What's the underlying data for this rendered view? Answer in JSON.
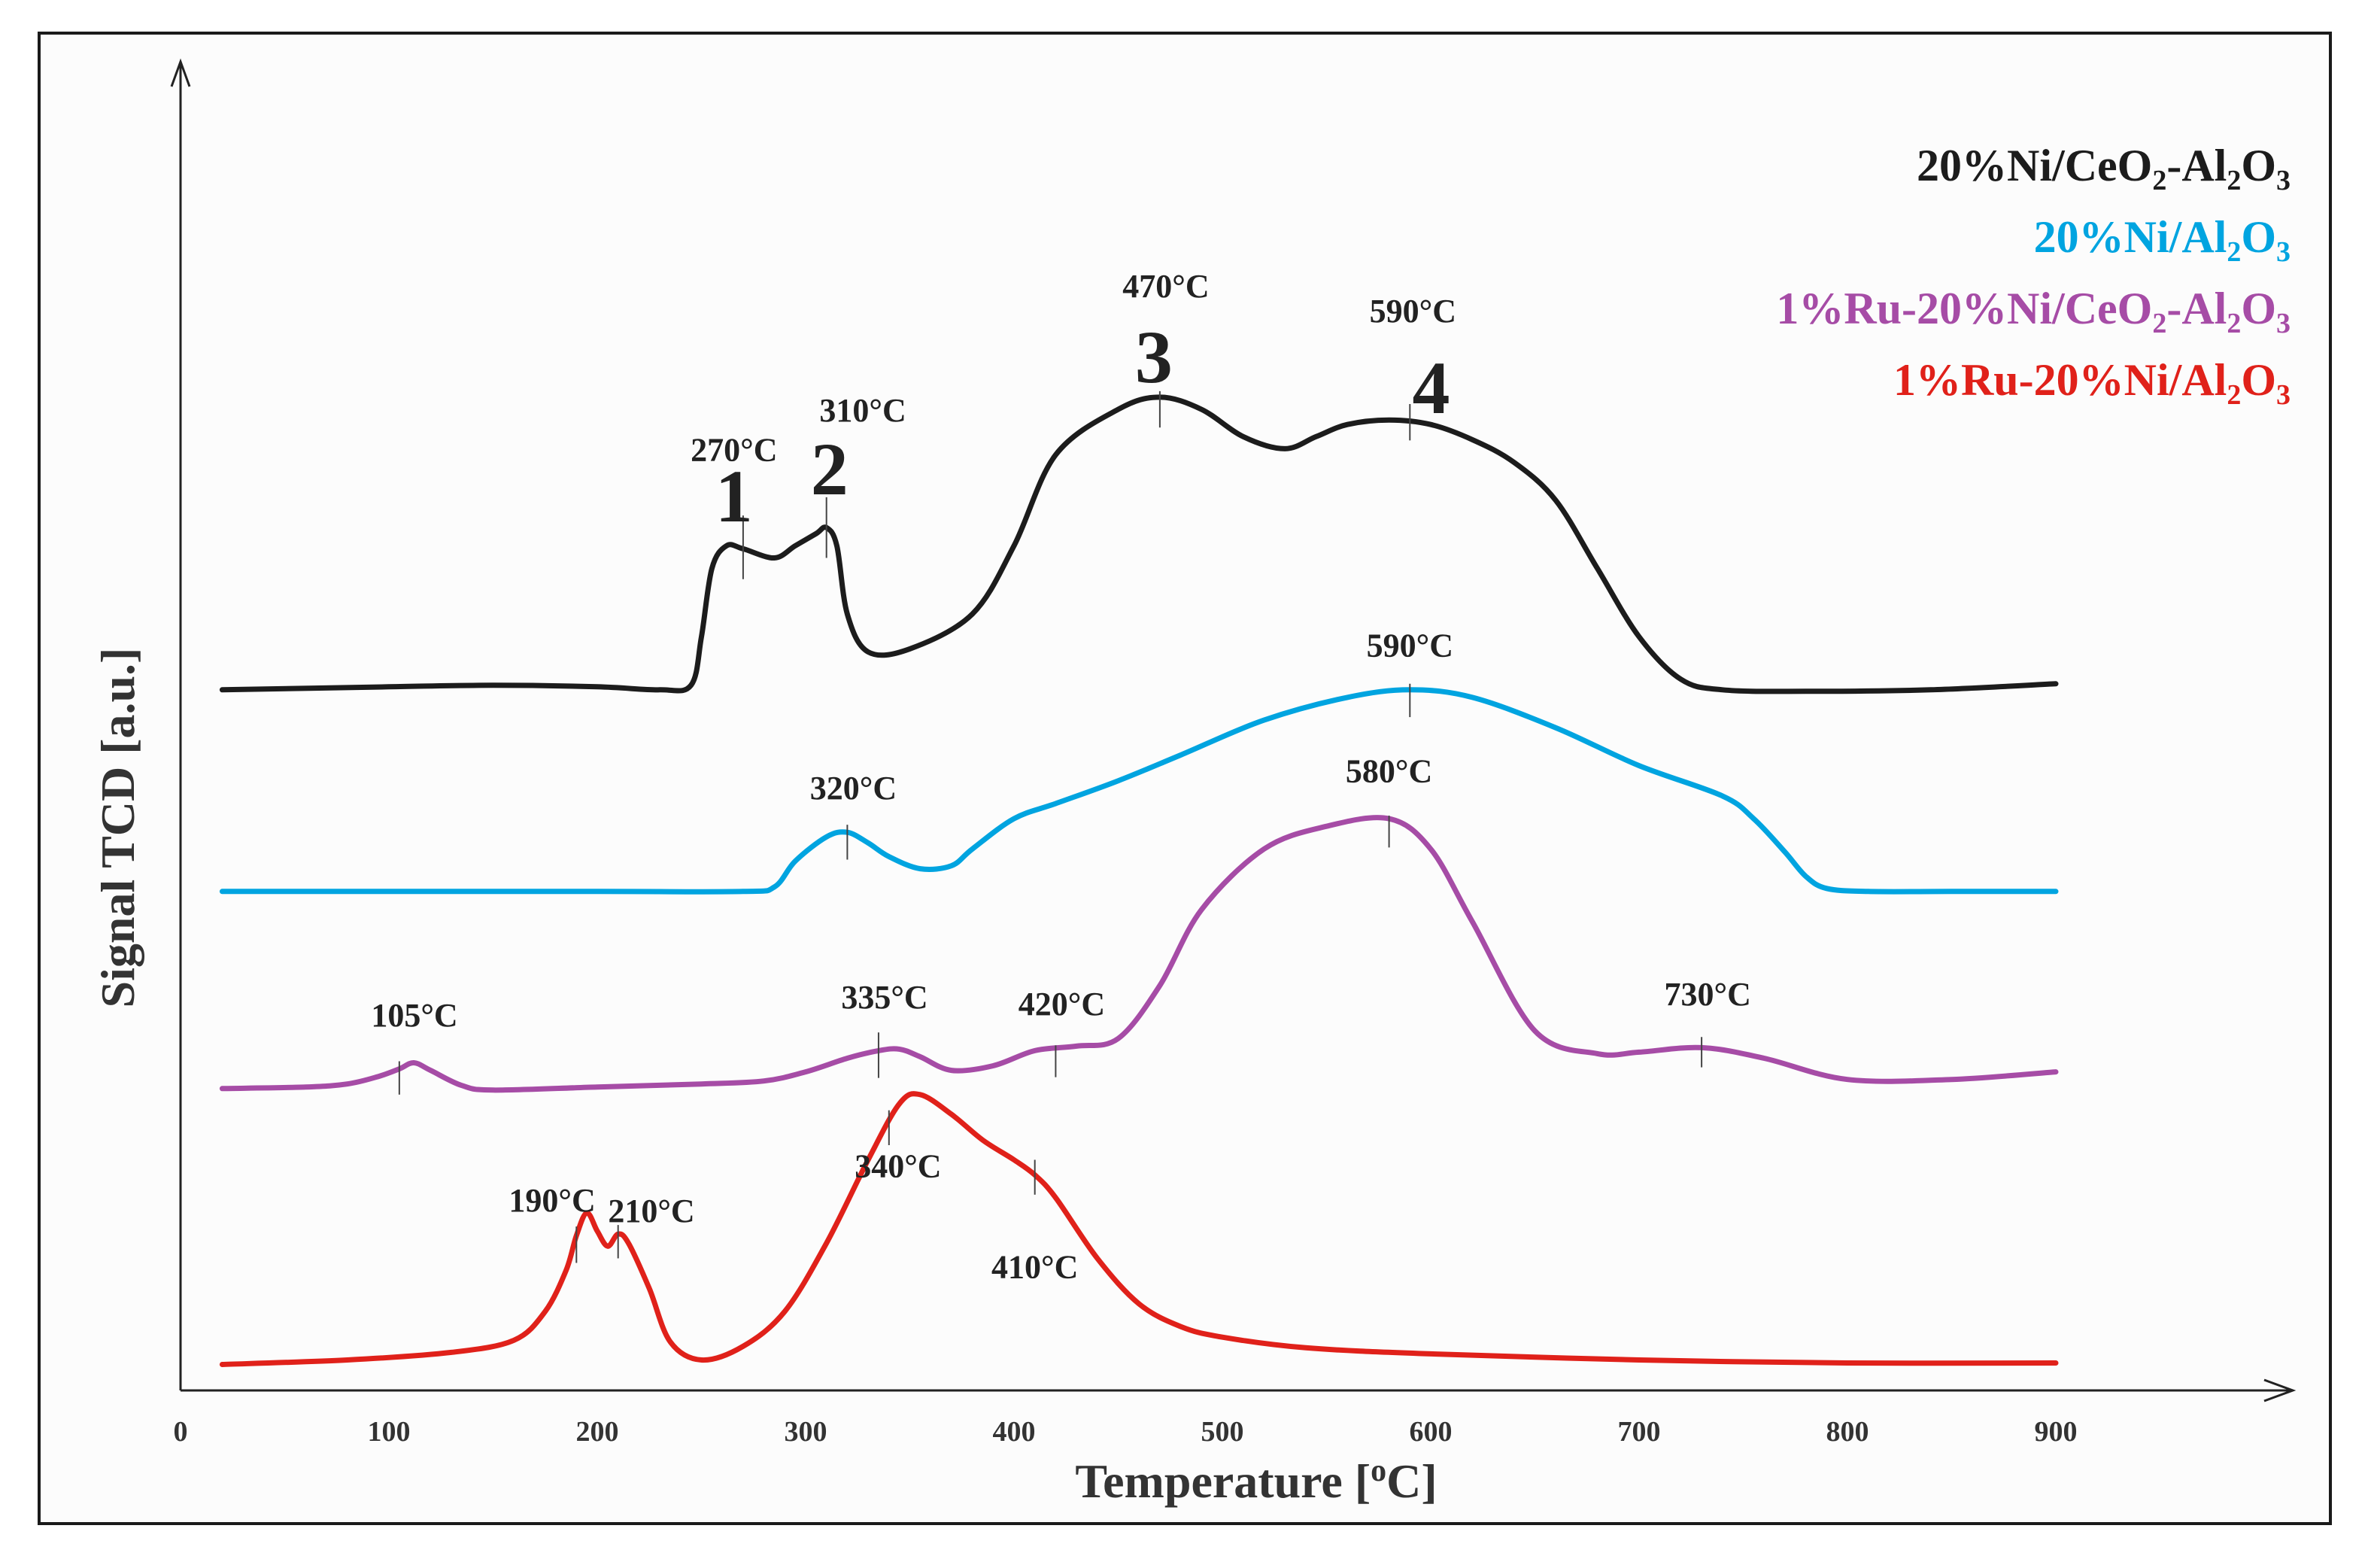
{
  "chart_data": {
    "type": "line",
    "title": "",
    "xlabel": "Temperature [°C]",
    "xlabel_parts": [
      "Temperature [",
      "o",
      "C]"
    ],
    "ylabel": "Signal TCD [a.u.]",
    "xlim": [
      0,
      1000
    ],
    "xticks": [
      0,
      100,
      200,
      300,
      400,
      500,
      600,
      700,
      800,
      900
    ],
    "y_units": "arbitrary (curves vertically offset)",
    "grid": false,
    "legend_position": "top-right",
    "series": [
      {
        "name": "20%Ni/CeO2-Al2O3",
        "legend_parts": [
          [
            "20%Ni/CeO",
            false
          ],
          [
            "2",
            true
          ],
          [
            "-Al",
            false
          ],
          [
            "2",
            true
          ],
          [
            "O",
            false
          ],
          [
            "3",
            true
          ]
        ],
        "color": "#1c1c1c",
        "x": [
          20,
          100,
          150,
          200,
          230,
          245,
          250,
          255,
          262,
          270,
          285,
          295,
          305,
          310,
          315,
          320,
          330,
          350,
          380,
          400,
          420,
          450,
          470,
          490,
          510,
          530,
          545,
          560,
          580,
          600,
          620,
          640,
          660,
          680,
          700,
          720,
          740,
          780,
          840,
          900
        ],
        "y": [
          455,
          453,
          452,
          453,
          455,
          452,
          420,
          375,
          360,
          362,
          368,
          360,
          352,
          348,
          360,
          405,
          430,
          428,
          405,
          360,
          300,
          270,
          262,
          270,
          288,
          296,
          288,
          280,
          277,
          280,
          290,
          305,
          330,
          375,
          420,
          448,
          455,
          456,
          455,
          451
        ],
        "peaks": [
          {
            "x": 270,
            "label": "270°C",
            "number": "1"
          },
          {
            "x": 310,
            "label": "310°C",
            "number": "2"
          },
          {
            "x": 470,
            "label": "470°C",
            "number": "3"
          },
          {
            "x": 590,
            "label": "590°C",
            "number": "4"
          }
        ]
      },
      {
        "name": "20%Ni/Al2O3",
        "legend_parts": [
          [
            "20%Ni/Al",
            false
          ],
          [
            "2",
            true
          ],
          [
            "O",
            false
          ],
          [
            "3",
            true
          ]
        ],
        "color": "#00a4e0",
        "x": [
          20,
          100,
          200,
          270,
          285,
          295,
          310,
          320,
          330,
          340,
          355,
          370,
          380,
          400,
          420,
          450,
          480,
          520,
          560,
          590,
          620,
          660,
          700,
          740,
          755,
          770,
          780,
          790,
          810,
          850,
          900
        ],
        "y": [
          588,
          588,
          588,
          588,
          585,
          568,
          552,
          549,
          556,
          565,
          573,
          571,
          560,
          540,
          530,
          515,
          498,
          475,
          460,
          455,
          460,
          480,
          505,
          525,
          540,
          562,
          578,
          586,
          588,
          588,
          588
        ],
        "peaks": [
          {
            "x": 320,
            "label": "320°C"
          },
          {
            "x": 590,
            "label": "590°C"
          }
        ]
      },
      {
        "name": "1%Ru-20%Ni/CeO2-Al2O3",
        "legend_parts": [
          [
            "1%Ru-20%Ni/CeO",
            false
          ],
          [
            "2",
            true
          ],
          [
            "-Al",
            false
          ],
          [
            "2",
            true
          ],
          [
            "O",
            false
          ],
          [
            "3",
            true
          ]
        ],
        "color": "#a64ca6",
        "x": [
          20,
          60,
          80,
          95,
          105,
          112,
          120,
          135,
          150,
          200,
          250,
          280,
          300,
          320,
          335,
          345,
          355,
          370,
          390,
          410,
          430,
          450,
          470,
          490,
          520,
          550,
          580,
          600,
          620,
          650,
          680,
          700,
          730,
          760,
          800,
          850,
          900
        ],
        "y": [
          718,
          717,
          715,
          710,
          705,
          701,
          706,
          716,
          719,
          717,
          715,
          713,
          707,
          698,
          693,
          692,
          697,
          706,
          703,
          693,
          690,
          685,
          650,
          600,
          560,
          545,
          540,
          560,
          608,
          680,
          695,
          694,
          691,
          698,
          712,
          712,
          707
        ],
        "peaks": [
          {
            "x": 105,
            "label": "105°C"
          },
          {
            "x": 335,
            "label": "335°C"
          },
          {
            "x": 420,
            "label": "420°C"
          },
          {
            "x": 580,
            "label": "580°C"
          },
          {
            "x": 730,
            "label": "730°C"
          }
        ]
      },
      {
        "name": "1%Ru-20%Ni/Al2O3",
        "legend_parts": [
          [
            "1%Ru-20%Ni/Al",
            false
          ],
          [
            "2",
            true
          ],
          [
            "O",
            false
          ],
          [
            "3",
            true
          ]
        ],
        "color": "#e0211a",
        "x": [
          20,
          80,
          130,
          160,
          175,
          185,
          190,
          195,
          200,
          205,
          210,
          215,
          225,
          235,
          250,
          270,
          290,
          310,
          330,
          345,
          355,
          370,
          385,
          400,
          410,
          420,
          440,
          460,
          480,
          500,
          540,
          600,
          700,
          800,
          900
        ],
        "y": [
          900,
          897,
          892,
          884,
          865,
          838,
          815,
          800,
          812,
          822,
          814,
          820,
          850,
          885,
          897,
          888,
          865,
          820,
          765,
          728,
          722,
          735,
          752,
          765,
          775,
          790,
          830,
          860,
          875,
          882,
          889,
          893,
          897,
          899,
          899
        ],
        "peaks": [
          {
            "x": 190,
            "label": "190°C"
          },
          {
            "x": 210,
            "label": "210°C"
          },
          {
            "x": 340,
            "label": "340°C"
          },
          {
            "x": 410,
            "label": "410°C"
          }
        ]
      }
    ]
  }
}
